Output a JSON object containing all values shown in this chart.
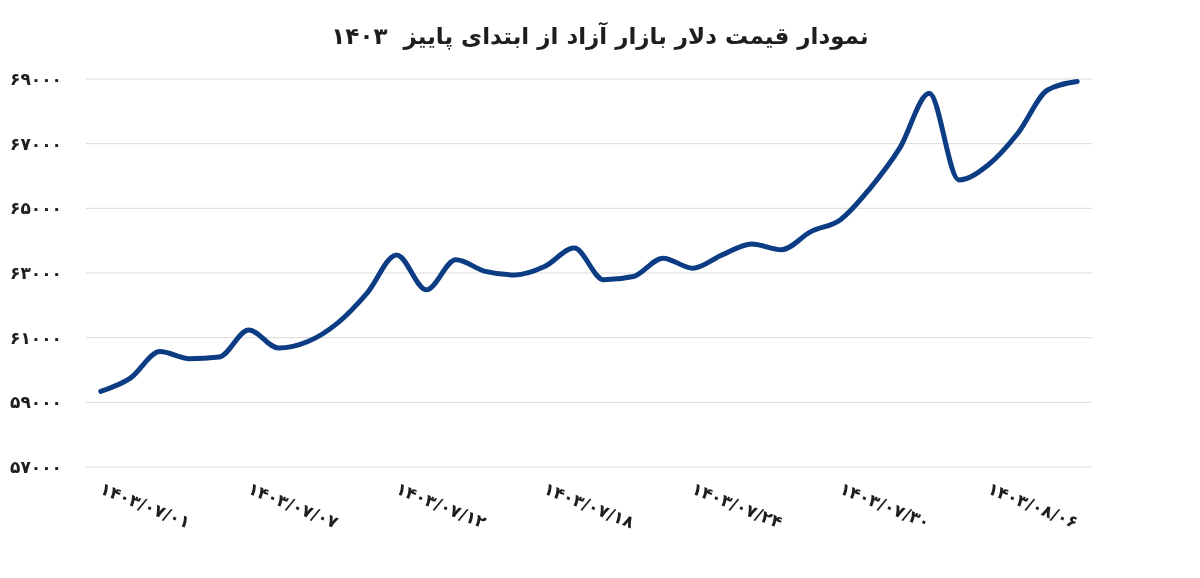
{
  "chart_data": {
    "type": "line",
    "title": "نمودار قیمت دلار بازار آزاد از ابتدای پاییز  ۱۴۰۳",
    "categories": [
      "۱۴۰۳/۰۷/۰۱",
      null,
      null,
      null,
      null,
      "۱۴۰۳/۰۷/۰۷",
      null,
      null,
      null,
      null,
      "۱۴۰۳/۰۷/۱۲",
      null,
      null,
      null,
      null,
      "۱۴۰۳/۰۷/۱۸",
      null,
      null,
      null,
      null,
      "۱۴۰۳/۰۷/۲۴",
      null,
      null,
      null,
      null,
      "۱۴۰۳/۰۷/۳۰",
      null,
      null,
      null,
      null,
      "۱۴۰۳/۰۸/۰۶",
      null,
      null,
      null
    ],
    "values": [
      59340,
      59750,
      60570,
      60350,
      60400,
      61240,
      60680,
      60880,
      61450,
      62380,
      63560,
      62480,
      63410,
      63050,
      62940,
      63200,
      63770,
      62790,
      62890,
      63460,
      63150,
      63560,
      63900,
      63720,
      64280,
      64650,
      65620,
      66860,
      68560,
      65880,
      66350,
      67330,
      68660,
      68920
    ],
    "color": "#0c3d84",
    "ylim": [
      57000,
      69000
    ],
    "yticks": [
      {
        "value": 57000,
        "label": "۵۷۰۰۰"
      },
      {
        "value": 59000,
        "label": "۵۹۰۰۰"
      },
      {
        "value": 61000,
        "label": "۶۱۰۰۰"
      },
      {
        "value": 63000,
        "label": "۶۳۰۰۰"
      },
      {
        "value": 65000,
        "label": "۶۵۰۰۰"
      },
      {
        "value": 67000,
        "label": "۶۷۰۰۰"
      },
      {
        "value": 69000,
        "label": "۶۹۰۰۰"
      }
    ],
    "grid": "y",
    "line_style": "solid"
  }
}
